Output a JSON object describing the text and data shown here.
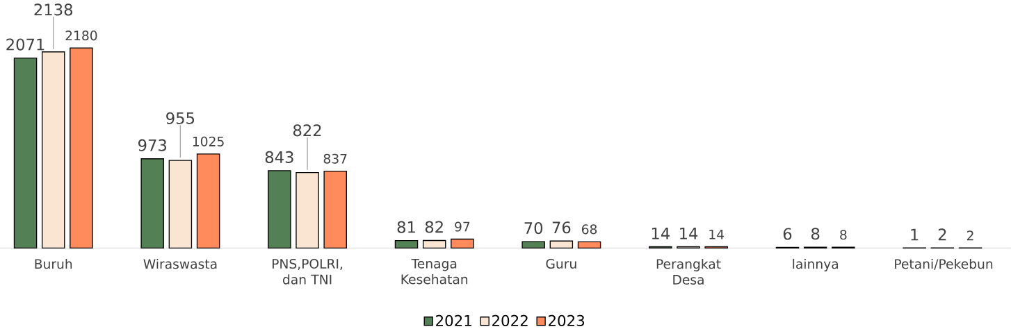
{
  "chart_data": {
    "type": "bar",
    "categories": [
      "Buruh",
      "Wiraswasta",
      "PNS,POLRI, dan TNI",
      "Tenaga Kesehatan",
      "Guru",
      "Perangkat Desa",
      "lainnya",
      "Petani/Pekebun"
    ],
    "series": [
      {
        "name": "2021",
        "color": "#548056",
        "values": [
          2071,
          973,
          843,
          81,
          70,
          14,
          6,
          1
        ]
      },
      {
        "name": "2022",
        "color": "#fae5d3",
        "values": [
          2138,
          955,
          822,
          82,
          76,
          14,
          8,
          2
        ]
      },
      {
        "name": "2023",
        "color": "#ff8a5b",
        "values": [
          2180,
          1025,
          837,
          97,
          68,
          14,
          8,
          2
        ]
      }
    ],
    "data_labels": true,
    "legend": "bottom"
  }
}
